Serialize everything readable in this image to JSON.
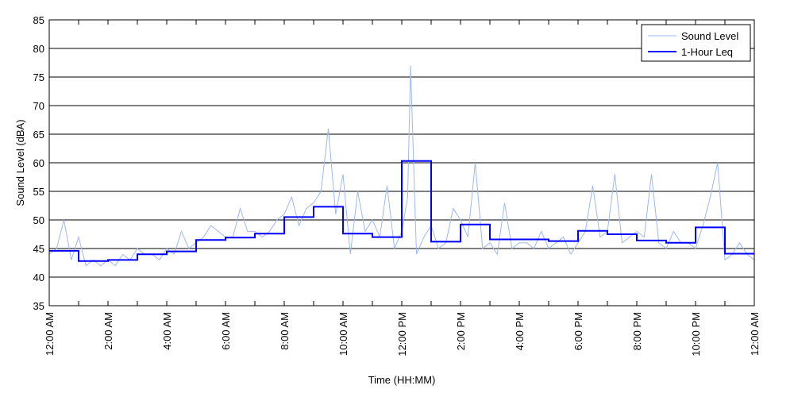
{
  "chart_data": {
    "type": "line",
    "title": "",
    "xlabel": "Time (HH:MM)",
    "ylabel": "Sound Level (dBA)",
    "ylim": [
      35,
      85
    ],
    "xlim": [
      0,
      24
    ],
    "y_ticks": [
      35,
      40,
      45,
      50,
      55,
      60,
      65,
      70,
      75,
      80,
      85
    ],
    "x_ticks": [
      0,
      2,
      4,
      6,
      8,
      10,
      12,
      14,
      16,
      18,
      20,
      22,
      24
    ],
    "x_tick_labels": [
      "12:00 AM",
      "2:00 AM",
      "4:00 AM",
      "6:00 AM",
      "8:00 AM",
      "10:00 AM",
      "12:00 PM",
      "2:00 PM",
      "4:00 PM",
      "6:00 PM",
      "8:00 PM",
      "10:00 PM",
      "12:00 AM"
    ],
    "grid": "horizontal",
    "legend_position": "top-right",
    "colors": {
      "sound_level": "#9db9ef",
      "leq": "#0000ff",
      "axes": "#000000",
      "grid": "#000000"
    },
    "series": [
      {
        "name": "Sound Level",
        "style": "thin light-blue line",
        "x": [
          0,
          0.25,
          0.5,
          0.75,
          1.0,
          1.25,
          1.5,
          1.75,
          2.0,
          2.25,
          2.5,
          2.75,
          3.0,
          3.25,
          3.5,
          3.75,
          4.0,
          4.25,
          4.5,
          4.75,
          5.0,
          5.25,
          5.5,
          5.75,
          6.0,
          6.25,
          6.5,
          6.75,
          7.0,
          7.25,
          7.5,
          7.75,
          8.0,
          8.25,
          8.5,
          8.75,
          9.0,
          9.25,
          9.5,
          9.75,
          10.0,
          10.25,
          10.5,
          10.75,
          11.0,
          11.25,
          11.5,
          11.75,
          12.0,
          12.2,
          12.3,
          12.5,
          12.75,
          13.0,
          13.25,
          13.5,
          13.75,
          14.0,
          14.25,
          14.5,
          14.75,
          15.0,
          15.25,
          15.5,
          15.75,
          16.0,
          16.25,
          16.5,
          16.75,
          17.0,
          17.25,
          17.5,
          17.75,
          18.0,
          18.25,
          18.5,
          18.75,
          19.0,
          19.25,
          19.5,
          19.75,
          20.0,
          20.25,
          20.5,
          20.75,
          21.0,
          21.25,
          21.5,
          21.75,
          22.0,
          22.25,
          22.5,
          22.75,
          23.0,
          23.25,
          23.5,
          23.75,
          24.0
        ],
        "values": [
          44,
          45,
          50,
          43,
          47,
          42,
          43,
          42,
          43,
          42,
          44,
          43,
          45,
          44,
          44,
          43,
          45,
          44,
          48,
          45,
          46,
          47,
          49,
          48,
          47,
          47,
          52,
          48,
          48,
          47,
          48,
          50,
          51,
          54,
          49,
          52,
          53,
          55,
          66,
          51,
          58,
          44,
          55,
          48,
          50,
          47,
          56,
          45,
          48,
          54,
          77,
          44,
          47,
          49,
          45,
          46,
          52,
          50,
          47,
          60,
          45,
          46,
          44,
          53,
          45,
          46,
          46,
          45,
          48,
          45,
          46,
          47,
          44,
          46,
          48,
          56,
          47,
          48,
          58,
          46,
          47,
          48,
          47,
          58,
          46,
          45,
          48,
          46,
          46,
          45,
          49,
          54,
          60,
          43,
          44,
          46,
          44,
          43
        ]
      },
      {
        "name": "1-Hour Leq",
        "style": "thick blue step line",
        "x": [
          0,
          1,
          2,
          3,
          4,
          5,
          6,
          7,
          8,
          9,
          10,
          11,
          12,
          13,
          14,
          15,
          16,
          17,
          18,
          19,
          20,
          21,
          22,
          23
        ],
        "values": [
          44.6,
          42.8,
          43.0,
          44.0,
          44.5,
          46.5,
          46.9,
          47.6,
          50.5,
          52.3,
          47.6,
          47.0,
          60.3,
          46.2,
          49.2,
          46.6,
          46.6,
          46.3,
          48.1,
          47.5,
          46.4,
          46.0,
          48.7,
          44.1
        ],
        "x_end": 24
      }
    ]
  }
}
